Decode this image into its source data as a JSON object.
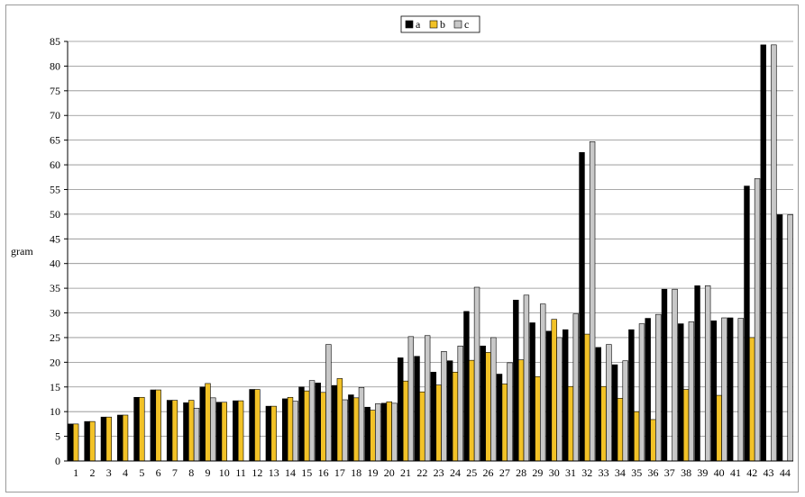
{
  "chart_data": {
    "type": "bar",
    "title": "",
    "xlabel": "",
    "ylabel": "gram",
    "ylim": [
      0,
      85
    ],
    "ytick_step": 5,
    "grid": true,
    "legend_position": "top-center",
    "categories": [
      "1",
      "2",
      "3",
      "4",
      "5",
      "6",
      "7",
      "8",
      "9",
      "10",
      "11",
      "12",
      "13",
      "14",
      "15",
      "16",
      "17",
      "18",
      "19",
      "20",
      "21",
      "22",
      "23",
      "24",
      "25",
      "26",
      "27",
      "28",
      "29",
      "30",
      "31",
      "32",
      "33",
      "34",
      "35",
      "36",
      "37",
      "38",
      "39",
      "40",
      "41",
      "42",
      "43",
      "44"
    ],
    "series": [
      {
        "name": "a",
        "color": "#000000",
        "values": [
          7.5,
          8,
          8.9,
          9.3,
          12.9,
          14.4,
          12.3,
          11.8,
          15,
          11.9,
          12.2,
          14.5,
          11.1,
          12.6,
          15,
          15.8,
          15.3,
          13.4,
          10.9,
          11.7,
          20.9,
          21.2,
          18,
          20.3,
          30.3,
          23.3,
          17.6,
          32.6,
          28,
          26.3,
          26.6,
          62.5,
          23,
          19.5,
          26.6,
          28.9,
          34.8,
          27.8,
          35.5,
          28.4,
          29,
          55.7,
          84.3,
          49.9
        ]
      },
      {
        "name": "b",
        "color": "#f2c227",
        "values": [
          7.5,
          8,
          8.9,
          9.3,
          12.9,
          14.4,
          12.3,
          12.3,
          15.7,
          11.9,
          12.2,
          14.5,
          11.1,
          12.9,
          14.2,
          13.9,
          16.7,
          12.8,
          10.3,
          12,
          16.2,
          14,
          15.4,
          18,
          20.4,
          22,
          15.6,
          20.5,
          17.1,
          28.7,
          15.1,
          25.7,
          15.1,
          12.7,
          10,
          8.4,
          0,
          14.5,
          0,
          13.3,
          0,
          25,
          0,
          0
        ]
      },
      {
        "name": "c",
        "color": "#c8c8c8",
        "values": [
          0,
          0,
          0,
          0,
          0,
          0,
          0,
          10.7,
          12.8,
          0,
          0,
          0,
          0,
          12.1,
          16.3,
          23.6,
          12.4,
          14.9,
          11.6,
          11.7,
          25.2,
          25.4,
          22.2,
          23.3,
          35.2,
          25,
          19.9,
          33.6,
          31.8,
          25,
          29.8,
          64.7,
          23.6,
          20.3,
          27.8,
          29.7,
          34.8,
          28.2,
          35.5,
          29,
          28.9,
          57.2,
          84.3,
          49.9
        ]
      }
    ]
  }
}
